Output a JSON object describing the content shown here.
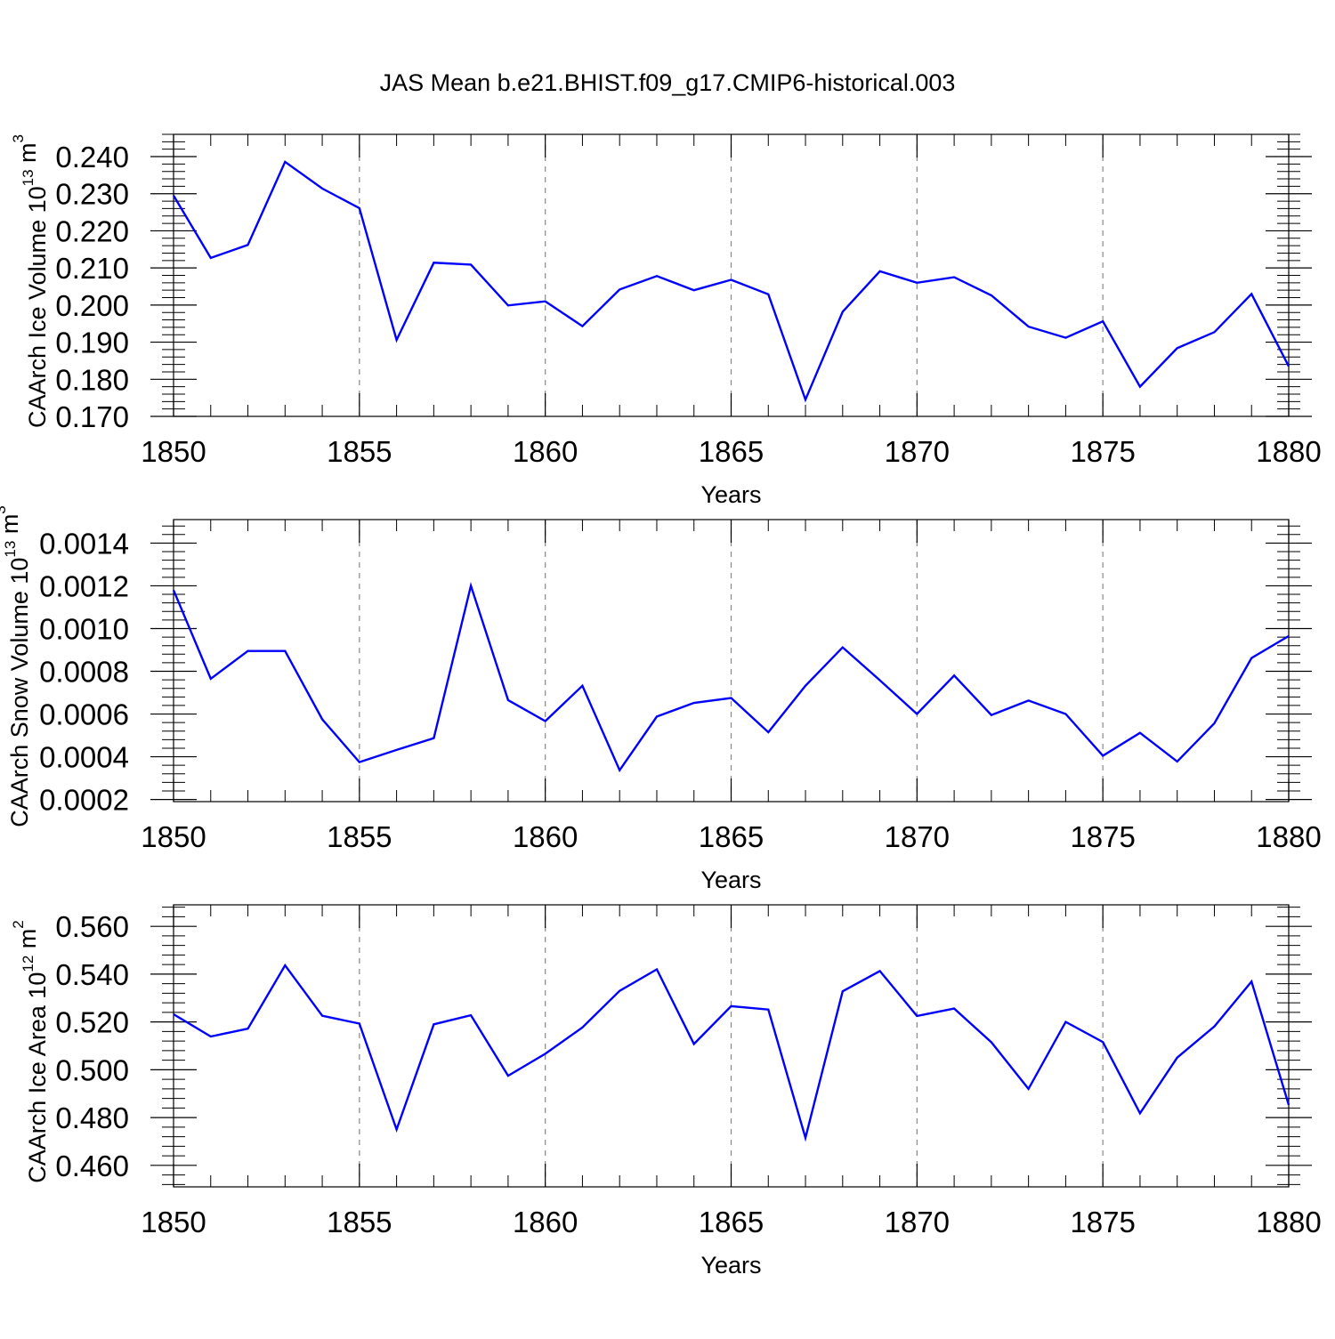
{
  "figure": {
    "title": "JAS Mean b.e21.BHIST.f09_g17.CMIP6-historical.003"
  },
  "chart_data": [
    {
      "type": "line",
      "title": "",
      "ylabel": "CAArch Ice Volume 10",
      "ylabel_exp": "13",
      "ylabel_unit": " m",
      "ylabel_unit_exp": "3",
      "xlabel": "Years",
      "xlim": [
        1850,
        1880
      ],
      "ylim": [
        0.17,
        0.246
      ],
      "x_ticks": [
        "1850",
        "1855",
        "1860",
        "1865",
        "1870",
        "1875",
        "1880"
      ],
      "y_ticks": [
        "0.170",
        "0.180",
        "0.190",
        "0.200",
        "0.210",
        "0.220",
        "0.230",
        "0.240"
      ],
      "y_tick_values": [
        0.17,
        0.18,
        0.19,
        0.2,
        0.21,
        0.22,
        0.23,
        0.24
      ],
      "y_minor_step": 0.002,
      "grid": "vertical dashed at major x ticks",
      "line_color": "#0000ff",
      "series": [
        {
          "x": [
            1850,
            1851,
            1852,
            1853,
            1854,
            1855,
            1856,
            1857,
            1858,
            1859,
            1860,
            1861,
            1862,
            1863,
            1864,
            1865,
            1866,
            1867,
            1868,
            1869,
            1870,
            1871,
            1872,
            1873,
            1874,
            1875,
            1876,
            1877,
            1878,
            1879,
            1880
          ],
          "values": [
            0.2295,
            0.2127,
            0.2162,
            0.2386,
            0.2314,
            0.2261,
            0.1906,
            0.2114,
            0.2109,
            0.1999,
            0.201,
            0.1943,
            0.2042,
            0.2078,
            0.204,
            0.2068,
            0.2029,
            0.1745,
            0.1982,
            0.2091,
            0.206,
            0.2075,
            0.2026,
            0.1942,
            0.1912,
            0.1956,
            0.178,
            0.1884,
            0.1927,
            0.203,
            0.1835
          ]
        }
      ]
    },
    {
      "type": "line",
      "title": "",
      "ylabel": "CAArch Snow Volume 10",
      "ylabel_exp": "13",
      "ylabel_unit": " m",
      "ylabel_unit_exp": "3",
      "xlabel": "Years",
      "xlim": [
        1850,
        1880
      ],
      "ylim": [
        0.00019,
        0.00151
      ],
      "x_ticks": [
        "1850",
        "1855",
        "1860",
        "1865",
        "1870",
        "1875",
        "1880"
      ],
      "y_ticks": [
        "0.0002",
        "0.0004",
        "0.0006",
        "0.0008",
        "0.0010",
        "0.0012",
        "0.0014"
      ],
      "y_tick_values": [
        0.0002,
        0.0004,
        0.0006,
        0.0008,
        0.001,
        0.0012,
        0.0014
      ],
      "y_minor_step": 4e-05,
      "grid": "vertical dashed at major x ticks",
      "line_color": "#0000ff",
      "series": [
        {
          "x": [
            1850,
            1851,
            1852,
            1853,
            1854,
            1855,
            1856,
            1857,
            1858,
            1859,
            1860,
            1861,
            1862,
            1863,
            1864,
            1865,
            1866,
            1867,
            1868,
            1869,
            1870,
            1871,
            1872,
            1873,
            1874,
            1875,
            1876,
            1877,
            1878,
            1879,
            1880
          ],
          "values": [
            0.00118,
            0.000765,
            0.000895,
            0.000895,
            0.000575,
            0.000375,
            0.000432,
            0.000487,
            0.0012,
            0.000665,
            0.000567,
            0.000732,
            0.000337,
            0.000588,
            0.000652,
            0.000675,
            0.000515,
            0.000732,
            0.000912,
            0.000758,
            0.0006,
            0.00078,
            0.000595,
            0.000663,
            0.0006,
            0.000405,
            0.000512,
            0.000378,
            0.000557,
            0.000862,
            0.000965
          ]
        }
      ]
    },
    {
      "type": "line",
      "title": "",
      "ylabel": "CAArch Ice Area 10",
      "ylabel_exp": "12",
      "ylabel_unit": " m",
      "ylabel_unit_exp": "2",
      "xlabel": "Years",
      "xlim": [
        1850,
        1880
      ],
      "ylim": [
        0.451,
        0.569
      ],
      "x_ticks": [
        "1850",
        "1855",
        "1860",
        "1865",
        "1870",
        "1875",
        "1880"
      ],
      "y_ticks": [
        "0.460",
        "0.480",
        "0.500",
        "0.520",
        "0.540",
        "0.560"
      ],
      "y_tick_values": [
        0.46,
        0.48,
        0.5,
        0.52,
        0.54,
        0.56
      ],
      "y_minor_step": 0.004,
      "grid": "vertical dashed at major x ticks",
      "line_color": "#0000ff",
      "series": [
        {
          "x": [
            1850,
            1851,
            1852,
            1853,
            1854,
            1855,
            1856,
            1857,
            1858,
            1859,
            1860,
            1861,
            1862,
            1863,
            1864,
            1865,
            1866,
            1867,
            1868,
            1869,
            1870,
            1871,
            1872,
            1873,
            1874,
            1875,
            1876,
            1877,
            1878,
            1879,
            1880
          ],
          "values": [
            0.5232,
            0.5139,
            0.5172,
            0.5437,
            0.5226,
            0.5193,
            0.475,
            0.519,
            0.5228,
            0.4975,
            0.5067,
            0.5177,
            0.533,
            0.542,
            0.5108,
            0.5266,
            0.5252,
            0.4715,
            0.5328,
            0.5413,
            0.5225,
            0.5256,
            0.5115,
            0.492,
            0.52,
            0.5116,
            0.4818,
            0.5051,
            0.5181,
            0.5369,
            0.4853
          ]
        }
      ]
    }
  ]
}
